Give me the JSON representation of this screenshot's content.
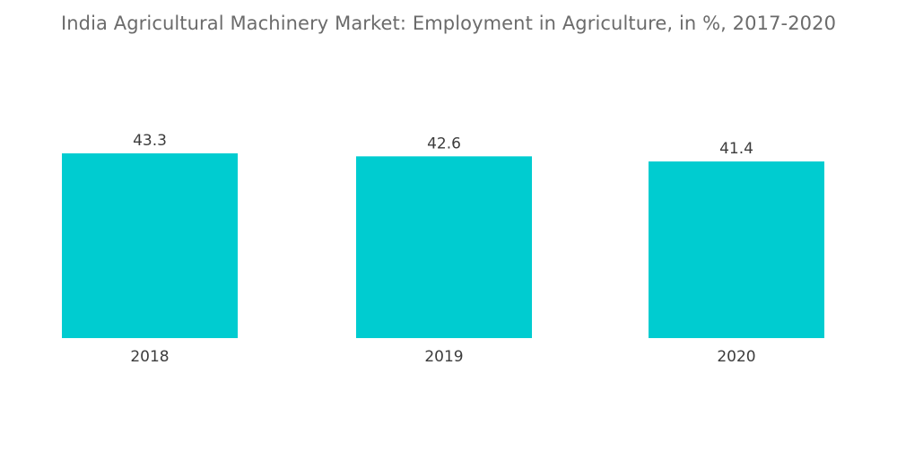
{
  "title": "India Agricultural Machinery Market: Employment in Agriculture, in %, 2017-2020",
  "colors": {
    "bar": "#00ccd0",
    "title": "#6b6b6b",
    "label": "#3c3c3c"
  },
  "chart_data": {
    "type": "bar",
    "title": "India Agricultural Machinery Market: Employment in Agriculture, in %, 2017-2020",
    "categories": [
      "2018",
      "2019",
      "2020"
    ],
    "values": [
      43.3,
      42.6,
      41.4
    ],
    "data_labels": [
      "43.3",
      "42.6",
      "41.4"
    ],
    "xlabel": "",
    "ylabel": "",
    "ylim": [
      0,
      43.3
    ],
    "grid": false,
    "legend": "none",
    "y_axis_visible": false
  }
}
